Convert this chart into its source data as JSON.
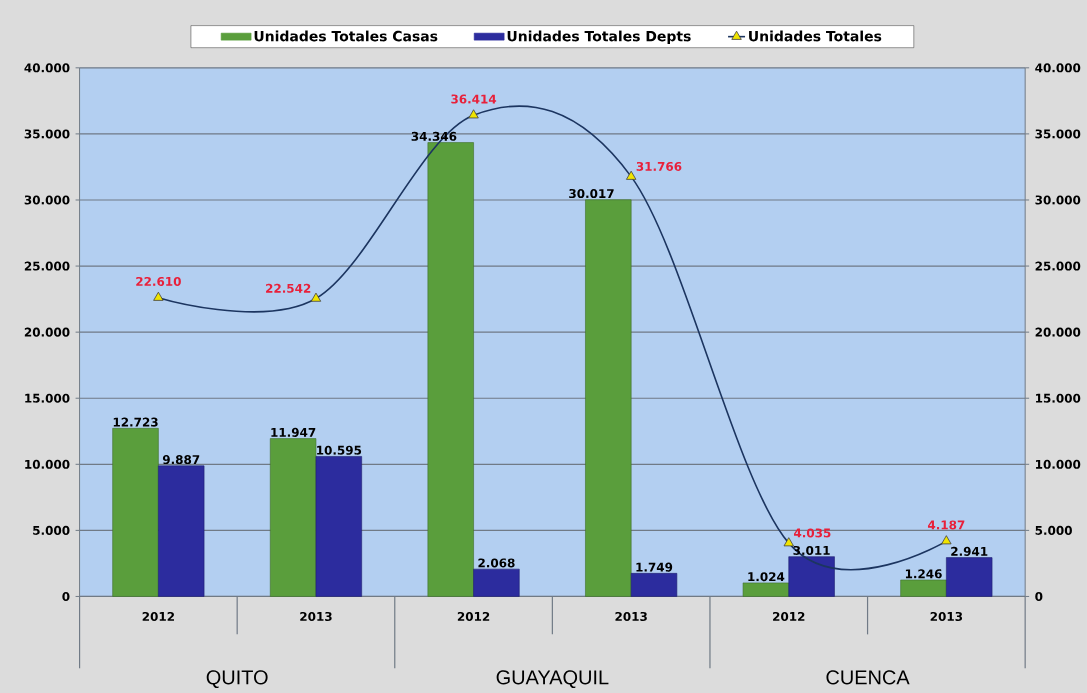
{
  "chart_data": {
    "type": "bar",
    "categories": [
      "2012",
      "2013",
      "2012",
      "2013",
      "2012",
      "2013"
    ],
    "series": [
      {
        "name": "Unidades Totales Casas",
        "color": "#5a9e3c",
        "values": [
          12723,
          11947,
          34346,
          30017,
          1024,
          1246
        ],
        "value_labels": [
          "12.723",
          "11.947",
          "34.346",
          "30.017",
          "1.024",
          "1.246"
        ]
      },
      {
        "name": "Unidades Totales Depts",
        "color": "#2c2c9e",
        "values": [
          9887,
          10595,
          2068,
          1749,
          3011,
          2941
        ],
        "value_labels": [
          "9.887",
          "10.595",
          "2.068",
          "1.749",
          "3.011",
          "2.941"
        ]
      },
      {
        "name": "Unidades Totales",
        "type": "line",
        "color": "#1c3560",
        "marker": "triangle",
        "values": [
          22610,
          22542,
          36414,
          31766,
          4035,
          4187
        ],
        "value_labels": [
          "22.610",
          "22.542",
          "36.414",
          "31.766",
          "4.035",
          "4.187"
        ]
      }
    ],
    "ylim": [
      0,
      40000
    ],
    "yticks": [
      0,
      {
        "value": 5000,
        "label": "5.000"
      },
      {
        "value": 10000,
        "label": "10.000"
      },
      {
        "value": 15000,
        "label": "15.000"
      },
      {
        "value": 20000,
        "label": "20.000"
      },
      {
        "value": 25000,
        "label": "25.000"
      },
      {
        "value": 30000,
        "label": "30.000"
      },
      {
        "value": 35000,
        "label": "35.000"
      },
      {
        "value": 40000,
        "label": "40.000"
      }
    ],
    "y2lim": [
      0,
      40000
    ],
    "y2ticks": [
      0,
      {
        "value": 5000,
        "label": "5.000"
      },
      {
        "value": 10000,
        "label": "10.000"
      },
      {
        "value": 15000,
        "label": "15.000"
      },
      {
        "value": 20000,
        "label": "20.000"
      },
      {
        "value": 25000,
        "label": "25.000"
      },
      {
        "value": 30000,
        "label": "30.000"
      },
      {
        "value": 35000,
        "label": "35.000"
      },
      {
        "value": 40000,
        "label": "40.000"
      }
    ],
    "annotations": [
      "QUITO",
      "GUAYAQUIL",
      "CUENCA"
    ],
    "grid": "y",
    "legend": "top"
  }
}
